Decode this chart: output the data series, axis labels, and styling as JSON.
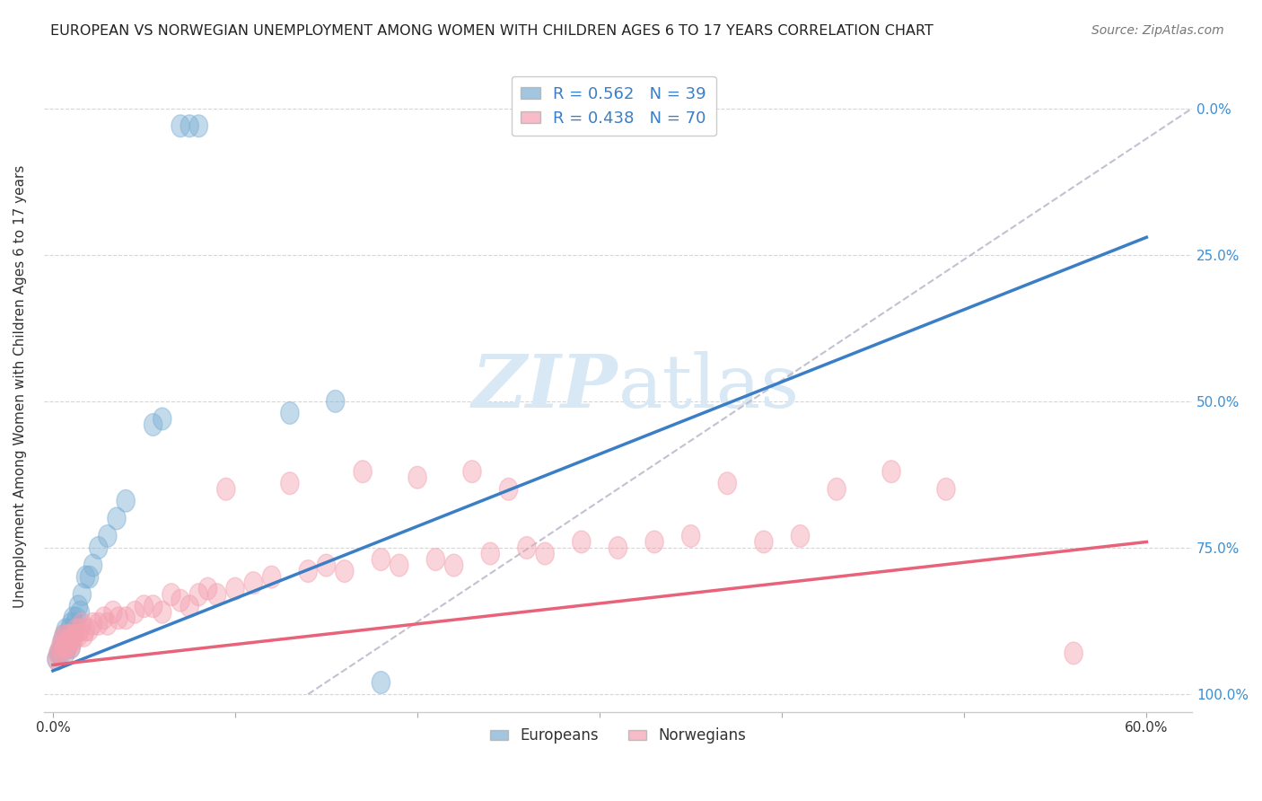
{
  "title": "EUROPEAN VS NORWEGIAN UNEMPLOYMENT AMONG WOMEN WITH CHILDREN AGES 6 TO 17 YEARS CORRELATION CHART",
  "source": "Source: ZipAtlas.com",
  "ylabel": "Unemployment Among Women with Children Ages 6 to 17 years",
  "xlabel_ticks": [
    "0.0%",
    "",
    "",
    "",
    "",
    "",
    "60.0%"
  ],
  "xlabel_vals": [
    0.0,
    0.1,
    0.2,
    0.3,
    0.4,
    0.5,
    0.6
  ],
  "ylabel_ticks_right": [
    "100.0%",
    "75.0%",
    "50.0%",
    "25.0%",
    "0.0%"
  ],
  "ylabel_vals": [
    0.0,
    0.25,
    0.5,
    0.75,
    1.0
  ],
  "xlim": [
    -0.005,
    0.625
  ],
  "ylim": [
    -0.03,
    1.08
  ],
  "european_R": 0.562,
  "european_N": 39,
  "norwegian_R": 0.438,
  "norwegian_N": 70,
  "european_color": "#7BAFD4",
  "norwegian_color": "#F4A0B0",
  "line_european_color": "#3A7EC6",
  "line_norwegian_color": "#E8637A",
  "ref_line_color": "#BBBBCC",
  "watermark_color": "#D8E8F5",
  "legend_labels": [
    "Europeans",
    "Norwegians"
  ],
  "eu_line_x0": 0.0,
  "eu_line_y0": 0.04,
  "eu_line_x1": 0.6,
  "eu_line_y1": 0.78,
  "no_line_x0": 0.0,
  "no_line_y0": 0.05,
  "no_line_x1": 0.6,
  "no_line_y1": 0.26,
  "ref_line_x0": 0.14,
  "ref_line_y0": 0.0,
  "ref_line_x1": 0.625,
  "ref_line_y1": 1.0,
  "eu_x": [
    0.002,
    0.003,
    0.004,
    0.005,
    0.005,
    0.006,
    0.006,
    0.007,
    0.007,
    0.007,
    0.008,
    0.008,
    0.009,
    0.009,
    0.01,
    0.01,
    0.01,
    0.011,
    0.011,
    0.012,
    0.013,
    0.014,
    0.015,
    0.016,
    0.018,
    0.02,
    0.022,
    0.025,
    0.03,
    0.035,
    0.04,
    0.055,
    0.06,
    0.07,
    0.075,
    0.08,
    0.13,
    0.155,
    0.18
  ],
  "eu_y": [
    0.06,
    0.07,
    0.07,
    0.08,
    0.09,
    0.08,
    0.1,
    0.07,
    0.09,
    0.11,
    0.08,
    0.1,
    0.09,
    0.11,
    0.08,
    0.1,
    0.12,
    0.1,
    0.13,
    0.12,
    0.13,
    0.15,
    0.14,
    0.17,
    0.2,
    0.2,
    0.22,
    0.25,
    0.27,
    0.3,
    0.33,
    0.46,
    0.47,
    0.97,
    0.97,
    0.97,
    0.48,
    0.5,
    0.02
  ],
  "no_x": [
    0.002,
    0.003,
    0.004,
    0.005,
    0.005,
    0.006,
    0.006,
    0.007,
    0.007,
    0.008,
    0.008,
    0.009,
    0.01,
    0.01,
    0.011,
    0.012,
    0.013,
    0.014,
    0.015,
    0.016,
    0.017,
    0.018,
    0.02,
    0.022,
    0.025,
    0.028,
    0.03,
    0.033,
    0.036,
    0.04,
    0.045,
    0.05,
    0.055,
    0.06,
    0.065,
    0.07,
    0.075,
    0.08,
    0.085,
    0.09,
    0.095,
    0.1,
    0.11,
    0.12,
    0.13,
    0.14,
    0.15,
    0.16,
    0.17,
    0.18,
    0.19,
    0.2,
    0.21,
    0.22,
    0.23,
    0.24,
    0.25,
    0.26,
    0.27,
    0.29,
    0.31,
    0.33,
    0.35,
    0.37,
    0.39,
    0.41,
    0.43,
    0.46,
    0.49,
    0.56
  ],
  "no_y": [
    0.06,
    0.07,
    0.08,
    0.07,
    0.09,
    0.08,
    0.1,
    0.08,
    0.09,
    0.08,
    0.1,
    0.09,
    0.08,
    0.1,
    0.09,
    0.1,
    0.11,
    0.1,
    0.11,
    0.12,
    0.1,
    0.11,
    0.11,
    0.12,
    0.12,
    0.13,
    0.12,
    0.14,
    0.13,
    0.13,
    0.14,
    0.15,
    0.15,
    0.14,
    0.17,
    0.16,
    0.15,
    0.17,
    0.18,
    0.17,
    0.35,
    0.18,
    0.19,
    0.2,
    0.36,
    0.21,
    0.22,
    0.21,
    0.38,
    0.23,
    0.22,
    0.37,
    0.23,
    0.22,
    0.38,
    0.24,
    0.35,
    0.25,
    0.24,
    0.26,
    0.25,
    0.26,
    0.27,
    0.36,
    0.26,
    0.27,
    0.35,
    0.38,
    0.35,
    0.07
  ]
}
